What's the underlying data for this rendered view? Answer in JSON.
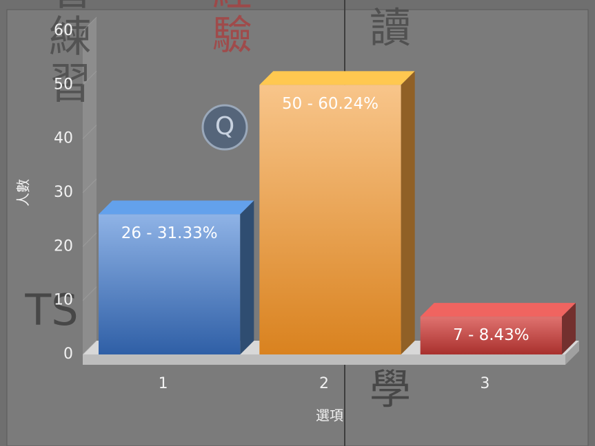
{
  "chart_data": {
    "type": "bar3d",
    "categories": [
      "1",
      "2",
      "3"
    ],
    "values": [
      26,
      50,
      7
    ],
    "value_labels": [
      "26 - 31.33%",
      "50 - 60.24%",
      "7 - 8.43%"
    ],
    "colors": [
      "#4f81bd",
      "#f0a040",
      "#c0504d"
    ],
    "y_label": "人數",
    "x_label": "選項",
    "ylim": [
      0,
      60
    ],
    "yticks": [
      0,
      10,
      20,
      30,
      40,
      50,
      60
    ],
    "annotations": [
      "帶著練習",
      "經驗",
      "讀",
      "學",
      "TS",
      "Q"
    ]
  }
}
